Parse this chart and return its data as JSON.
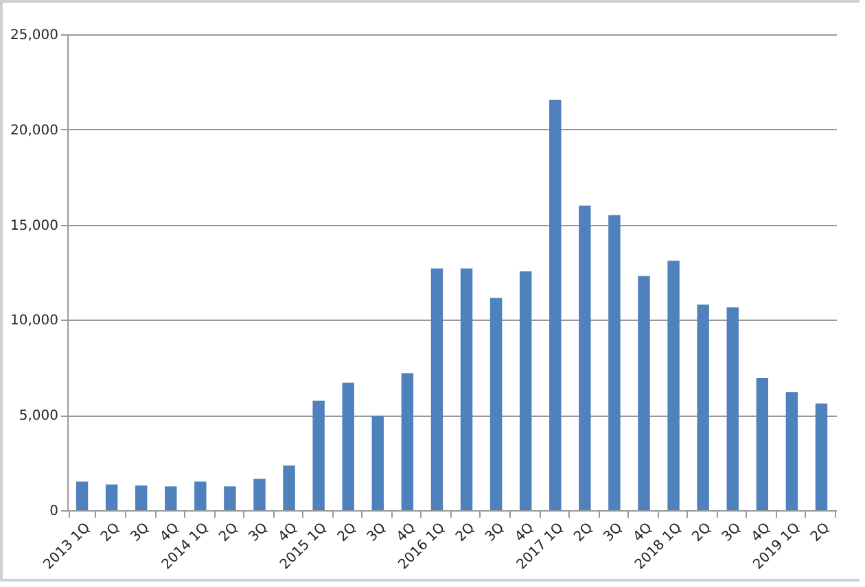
{
  "chart_data": {
    "type": "bar",
    "categories": [
      "2013 1Q",
      "2Q",
      "3Q",
      "4Q",
      "2014 1Q",
      "2Q",
      "3Q",
      "4Q",
      "2015 1Q",
      "2Q",
      "3Q",
      "4Q",
      "2016 1Q",
      "2Q",
      "3Q",
      "4Q",
      "2017 1Q",
      "2Q",
      "3Q",
      "4Q",
      "2018 1Q",
      "2Q",
      "3Q",
      "4Q",
      "2019 1Q",
      "2Q"
    ],
    "values": [
      1500,
      1350,
      1300,
      1250,
      1500,
      1250,
      1650,
      2350,
      5750,
      6700,
      4950,
      7200,
      12700,
      12700,
      11150,
      12550,
      21550,
      16000,
      15500,
      12300,
      13100,
      10800,
      10650,
      6950,
      6200,
      5600
    ],
    "color": "#4f81bd",
    "ylim": [
      0,
      25000
    ],
    "yticks": [
      0,
      {
        "value": 5000,
        "label": "5,000"
      },
      {
        "value": 10000,
        "label": "10,000"
      },
      {
        "value": 15000,
        "label": "15,000"
      },
      {
        "value": 20000,
        "label": "20,000"
      },
      {
        "value": 25000,
        "label": "25,000"
      }
    ],
    "grid": "y"
  }
}
